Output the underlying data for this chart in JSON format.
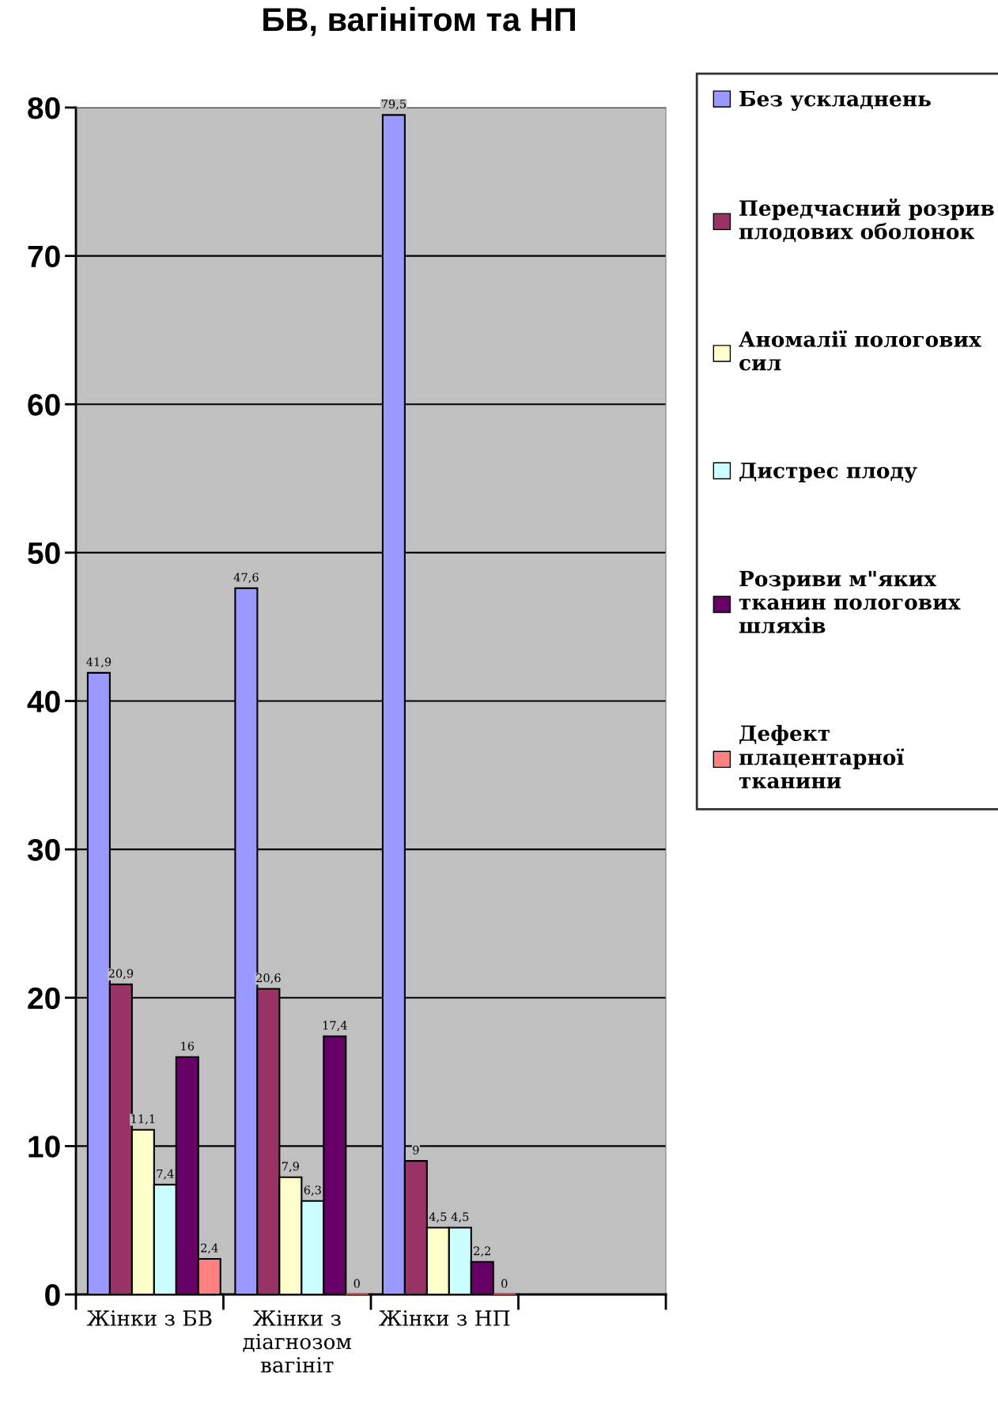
{
  "chart_data": {
    "type": "bar",
    "title": "БВ, вагінітом та НП",
    "categories": [
      "Жінки з БВ",
      "Жінки з діагнозом вагініт",
      "Жінки з НП",
      null
    ],
    "series": [
      {
        "name": "Без ускладнень",
        "color": "#9999ff",
        "values": [
          41.9,
          47.6,
          79.5,
          null
        ],
        "value_labels": [
          "41,9",
          "47,6",
          "79,5",
          null
        ]
      },
      {
        "name": "Передчасний розрив плодових оболонок",
        "color": "#993366",
        "values": [
          20.9,
          20.6,
          9,
          null
        ],
        "value_labels": [
          "20,9",
          "20,6",
          "9",
          null
        ]
      },
      {
        "name": "Аномалії пологових сил",
        "color": "#ffffcc",
        "values": [
          11.1,
          7.9,
          4.5,
          null
        ],
        "value_labels": [
          "11,1",
          "7,9",
          "4,5",
          null
        ]
      },
      {
        "name": "Дистрес плоду",
        "color": "#ccffff",
        "values": [
          7.4,
          6.3,
          4.5,
          null
        ],
        "value_labels": [
          "7,4",
          "6,3",
          "4,5",
          null
        ]
      },
      {
        "name": "Розриви м\"яких тканин пологових шляхів",
        "color": "#660066",
        "values": [
          16,
          17.4,
          2.2,
          null
        ],
        "value_labels": [
          "16",
          "17,4",
          "2,2",
          null
        ]
      },
      {
        "name": "Дефект плацентарної тканини",
        "color": "#ff8080",
        "values": [
          2.4,
          0,
          0,
          null
        ],
        "value_labels": [
          "2,4",
          "0",
          "0",
          null
        ]
      }
    ],
    "ylim": [
      0,
      80
    ],
    "yticks": [
      0,
      10,
      20,
      30,
      40,
      50,
      60,
      70,
      80
    ],
    "grid": "y",
    "legend": "right"
  }
}
